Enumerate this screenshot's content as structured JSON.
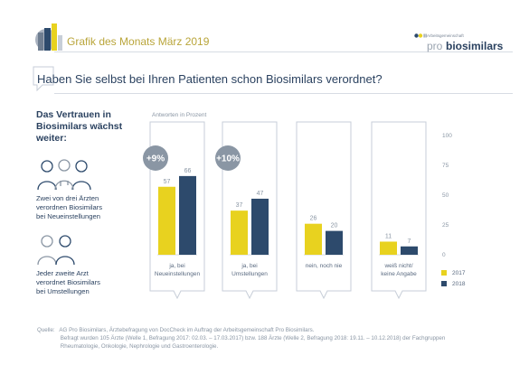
{
  "header": {
    "title": "Grafik des Monats März 2019",
    "brand_small": "Arbeitsgemeinschaft",
    "brand_pro": "pro",
    "brand_main": "biosimilars"
  },
  "headline": "Haben Sie selbst bei Ihren Patienten schon Biosimilars verordnet?",
  "sidebar": {
    "title_lines": [
      "Das Vertrauen in",
      "Biosimilars wächst",
      "weiter:"
    ],
    "note1_lines": [
      "Zwei von drei Ärzten",
      "verordnen Biosimilars",
      "bei Neueinstellungen"
    ],
    "note2_lines": [
      "Jeder zweite Arzt",
      "verordnet Biosimilars",
      "bei Umstellungen"
    ]
  },
  "chart_data": {
    "type": "bar",
    "unit_label": "Antworten in Prozent",
    "categories": [
      [
        "ja, bei",
        "Neueinstellungen"
      ],
      [
        "ja, bei",
        "Umstellungen"
      ],
      [
        "nein, noch nie"
      ],
      [
        "weiß nicht/",
        "keine Angabe"
      ]
    ],
    "series": [
      {
        "name": "2017",
        "values": [
          57,
          37,
          26,
          11
        ],
        "color": "#e8d21f"
      },
      {
        "name": "2018",
        "values": [
          66,
          47,
          20,
          7
        ],
        "color": "#2d4a6c"
      }
    ],
    "ylim": [
      0,
      100
    ],
    "yticks": [
      0,
      25,
      50,
      75,
      100
    ],
    "changes": [
      "+9%",
      "+10%"
    ],
    "change_color": "#8a96a4",
    "legend_position": "bottom-right"
  },
  "source": {
    "lines": [
      "Quelle:   AG Pro Biosimilars, Ärztebefragung von DocCheck im Auftrag der Arbeitsgemeinschaft Pro Biosimilars.",
      "               Befragt wurden 105 Ärzte (Welle 1, Befragung 2017: 02.03. – 17.03.2017) bzw. 188 Ärzte (Welle 2, Befragung 2018: 19.11. – 10.12.2018) der Fachgruppen",
      "               Rheumatologie, Onkologie, Nephrologie und Gastroenterologie."
    ]
  }
}
